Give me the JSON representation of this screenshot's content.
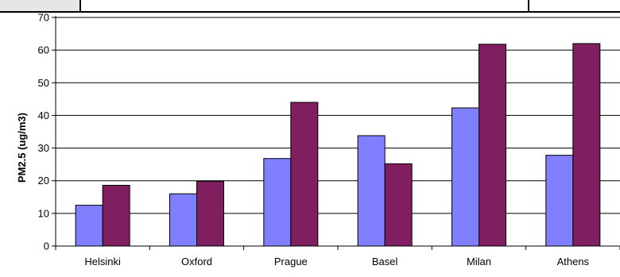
{
  "chart_data": {
    "type": "bar",
    "title": "",
    "xlabel": "",
    "ylabel": "PM2.5 (ug/m3)",
    "ylim": [
      0,
      70
    ],
    "yticks": [
      0,
      10,
      20,
      30,
      40,
      50,
      60,
      70
    ],
    "grid": true,
    "legend": "none",
    "categories": [
      "Helsinki",
      "Oxford",
      "Prague",
      "Basel",
      "Milan",
      "Athens"
    ],
    "series": [
      {
        "color": "#8080ff",
        "values": [
          12.5,
          16.0,
          26.8,
          33.8,
          42.3,
          27.8
        ]
      },
      {
        "color": "#7f1f5f",
        "values": [
          18.6,
          19.8,
          44.0,
          25.2,
          61.8,
          62.0
        ]
      }
    ]
  }
}
